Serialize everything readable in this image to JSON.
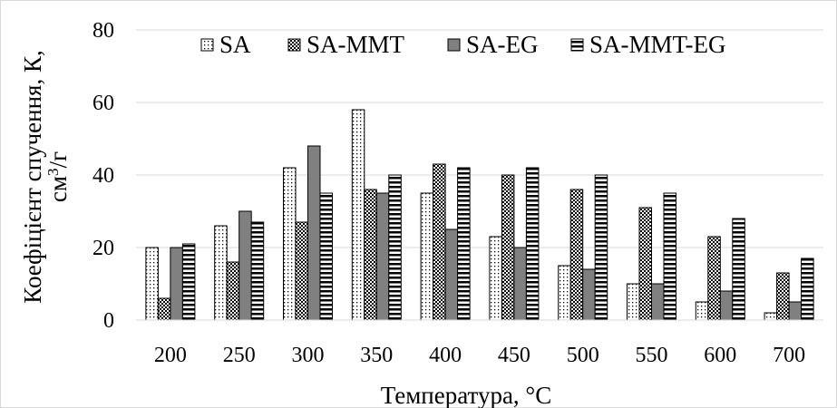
{
  "chart_data": {
    "type": "bar",
    "title": "",
    "xlabel": "Температура,  °С",
    "ylabel_line1": "Коефіцієнт спучення, К,",
    "ylabel_line2_base": "см",
    "ylabel_line2_sup": "3",
    "ylabel_line2_tail": "/г",
    "categories": [
      "200",
      "250",
      "300",
      "350",
      "400",
      "450",
      "500",
      "550",
      "600",
      "700"
    ],
    "ylim": [
      0,
      80
    ],
    "yticks": [
      "0",
      "20",
      "40",
      "60",
      "80"
    ],
    "grid": true,
    "legend_position": "top",
    "series": [
      {
        "name": "SA",
        "pattern": "dots",
        "values": [
          20,
          26,
          42,
          58,
          35,
          23,
          15,
          10,
          5,
          2
        ]
      },
      {
        "name": "SA-MMT",
        "pattern": "checker",
        "values": [
          6,
          16,
          27,
          36,
          43,
          40,
          36,
          31,
          23,
          13
        ]
      },
      {
        "name": "SA-EG",
        "pattern": "gray",
        "values": [
          20,
          30,
          48,
          35,
          25,
          20,
          14,
          10,
          8,
          5
        ]
      },
      {
        "name": "SA-MMT-EG",
        "pattern": "hstripes",
        "values": [
          21,
          27,
          35,
          40,
          42,
          42,
          40,
          35,
          28,
          17
        ]
      }
    ]
  }
}
